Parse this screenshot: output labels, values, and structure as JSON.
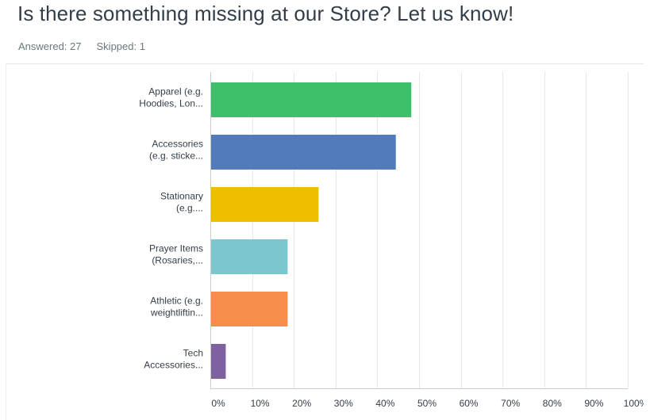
{
  "header": {
    "title": "Is there something missing at our Store? Let us know!",
    "answered_label": "Answered:",
    "answered_value": "27",
    "skipped_label": "Skipped:",
    "skipped_value": "1"
  },
  "chart_data": {
    "type": "bar",
    "orientation": "horizontal",
    "categories": [
      [
        "Apparel (e.g.",
        "Hoodies, Lon..."
      ],
      [
        "Accessories",
        "(e.g. sticke..."
      ],
      [
        "Stationary",
        "(e.g...."
      ],
      [
        "Prayer Items",
        "(Rosaries,..."
      ],
      [
        "Athletic (e.g.",
        "weightliftin..."
      ],
      [
        "Tech",
        "Accessories..."
      ]
    ],
    "values": [
      48.15,
      44.44,
      25.93,
      18.52,
      18.52,
      3.7
    ],
    "colors": [
      "#3dbf6b",
      "#527cb9",
      "#f0be00",
      "#7ac7ce",
      "#f68d4b",
      "#7d61a0"
    ],
    "xlim": [
      0,
      100
    ],
    "ticks": [
      "0%",
      "10%",
      "20%",
      "30%",
      "40%",
      "50%",
      "60%",
      "70%",
      "80%",
      "90%",
      "100%"
    ],
    "grid": true,
    "legend": "none"
  }
}
